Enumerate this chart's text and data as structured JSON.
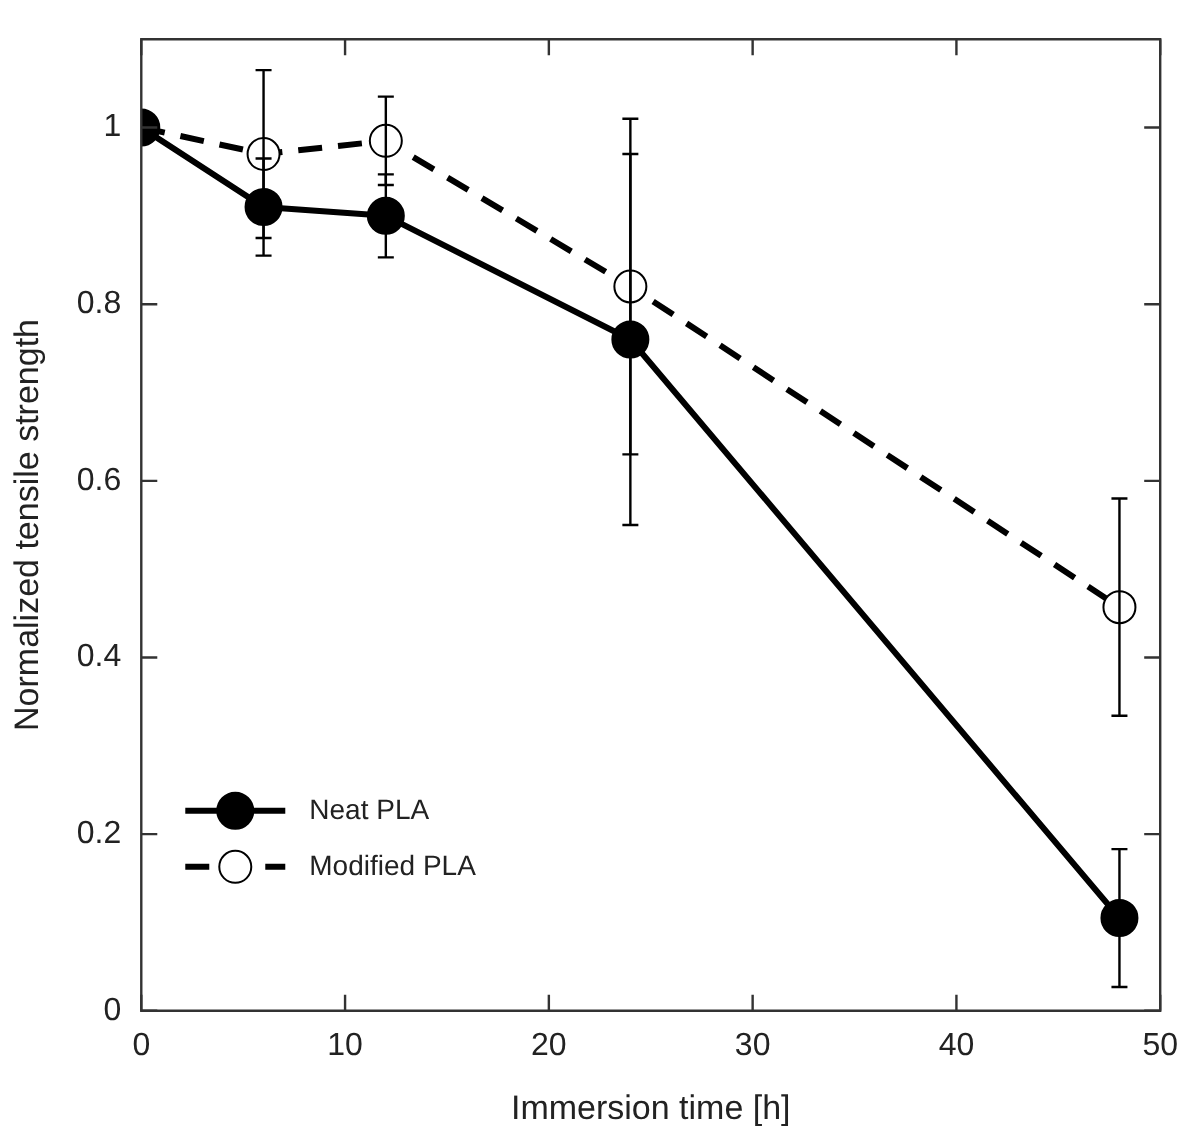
{
  "chart_data": {
    "type": "line",
    "xlabel": "Immersion time [h]",
    "ylabel": "Normalized tensile strength",
    "x": [
      0,
      6,
      12,
      24,
      48
    ],
    "series": [
      {
        "name": "Neat PLA",
        "color": "#000000",
        "line_style": "solid",
        "values": [
          1,
          0.91,
          0.9,
          0.76,
          0.105
        ],
        "errors": [
          null,
          0.055,
          0.047,
          0.21,
          0.078
        ]
      },
      {
        "name": "Modified PLA",
        "color": "#000000",
        "line_style": "dashed",
        "values": [
          1,
          0.97,
          0.985,
          0.82,
          0.457
        ],
        "errors": [
          null,
          0.095,
          0.05,
          0.19,
          0.123
        ]
      }
    ],
    "xlim": [
      0,
      50
    ],
    "xticks": [
      0,
      10,
      20,
      30,
      40,
      50
    ],
    "ylim": [
      0,
      1.1
    ],
    "yticks": [
      0,
      {
        "value": 0.2,
        "label": "0.2"
      },
      {
        "value": 0.4,
        "label": "0.4"
      },
      {
        "value": 0.6,
        "label": "0.6"
      },
      {
        "value": 0.8,
        "label": "0.8"
      },
      1
    ],
    "marker": "circle",
    "grid": false,
    "legend": "bottom left"
  }
}
